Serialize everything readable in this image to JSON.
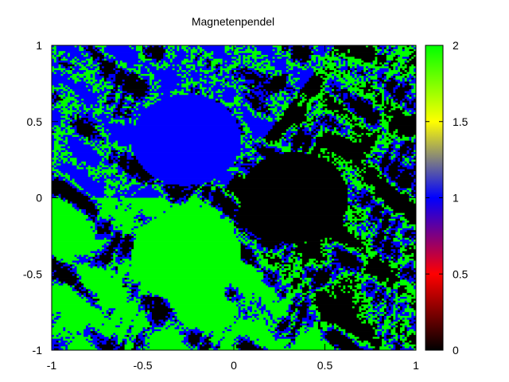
{
  "chart_data": {
    "type": "heatmap",
    "title": "Magnetenpendel",
    "xlabel": "",
    "ylabel": "",
    "xlim": [
      -1,
      1
    ],
    "ylim": [
      -1,
      1
    ],
    "xticks": [
      -1,
      -0.5,
      0,
      0.5,
      1
    ],
    "yticks": [
      -1,
      -0.5,
      0,
      0.5,
      1
    ],
    "xtick_labels": [
      "-1",
      "-0.5",
      "0",
      "0.5",
      "1"
    ],
    "ytick_labels": [
      "-1",
      "-0.5",
      "0",
      "0.5",
      "1"
    ],
    "grid": false,
    "colorbar": {
      "range": [
        0,
        2
      ],
      "ticks": [
        0,
        0.5,
        1,
        1.5,
        2
      ],
      "tick_labels": [
        "0",
        "0.5",
        "1",
        "1.5",
        "2"
      ],
      "palette": [
        "#000000",
        "#ff0000",
        "#0000ff",
        "#ffff00",
        "#00ff00"
      ]
    },
    "categories": [
      {
        "value": 0,
        "color": "#000000"
      },
      {
        "value": 1,
        "color": "#0000ff"
      },
      {
        "value": 2,
        "color": "#00ff00"
      }
    ],
    "basins": [
      {
        "value": 1,
        "center": [
          -0.26,
          0.38
        ],
        "color": "#0000ff"
      },
      {
        "value": 0,
        "center": [
          0.33,
          0.0
        ],
        "color": "#000000"
      },
      {
        "value": 2,
        "center": [
          -0.26,
          -0.38
        ],
        "color": "#00ff00"
      }
    ]
  }
}
